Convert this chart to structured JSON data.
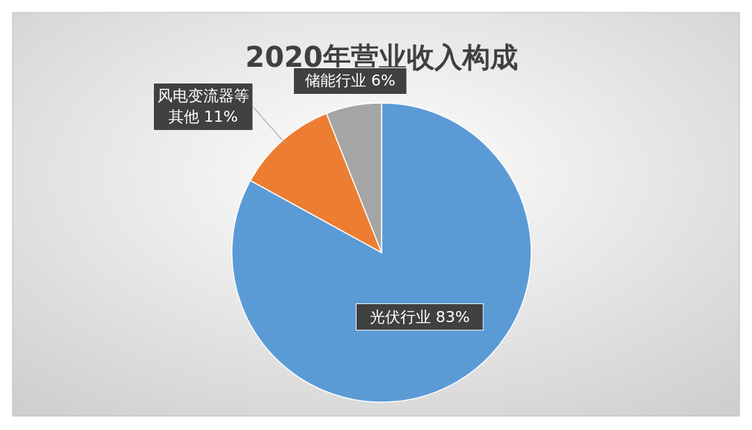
{
  "chart_data": {
    "type": "pie",
    "title": "2020年营业收入构成",
    "categories": [
      "光伏行业",
      "风电变流器等其他",
      "储能行业"
    ],
    "values": [
      83,
      11,
      6
    ],
    "colors": [
      "#5b9bd5",
      "#ed7d31",
      "#a5a5a5"
    ],
    "value_labels": [
      "83%",
      "11%",
      "6%"
    ]
  }
}
